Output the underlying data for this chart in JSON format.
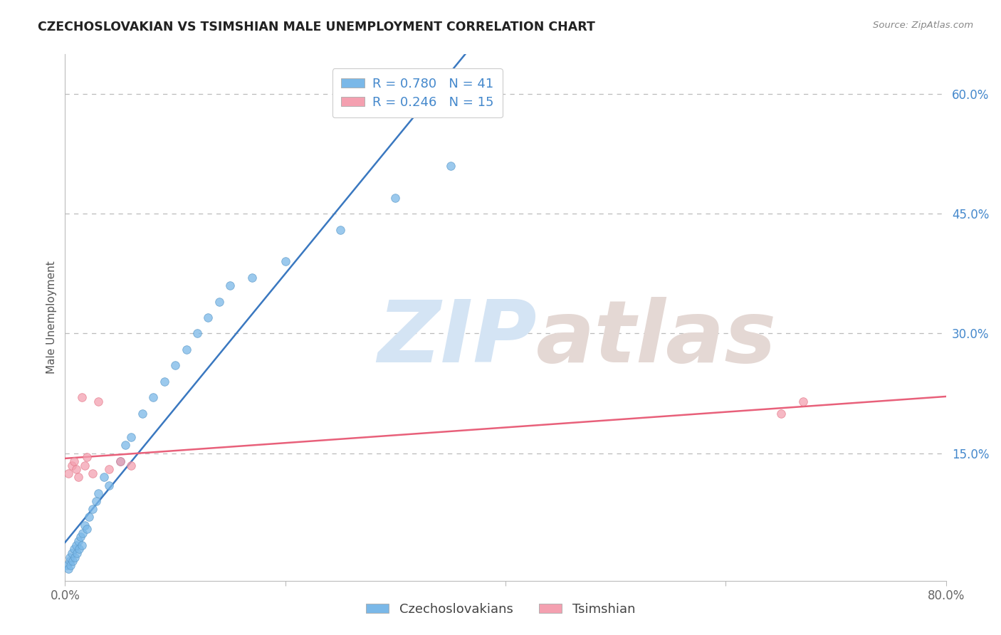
{
  "title": "CZECHOSLOVAKIAN VS TSIMSHIAN MALE UNEMPLOYMENT CORRELATION CHART",
  "source": "Source: ZipAtlas.com",
  "ylabel_label": "Male Unemployment",
  "right_ytick_values": [
    15.0,
    30.0,
    45.0,
    60.0
  ],
  "xlim": [
    0.0,
    80.0
  ],
  "ylim": [
    -1.0,
    65.0
  ],
  "blue_scatter_color": "#7ab8e8",
  "blue_scatter_edge": "#5a98c8",
  "pink_scatter_color": "#f4a0b0",
  "pink_scatter_edge": "#e47888",
  "blue_line_color": "#3a78c0",
  "pink_line_color": "#e8607a",
  "background_color": "#ffffff",
  "grid_color": "#bbbbbb",
  "title_color": "#222222",
  "source_color": "#888888",
  "axis_label_color": "#555555",
  "right_tick_color": "#4488cc",
  "bottom_tick_color": "#666666",
  "watermark_zip_color": "#d4e4f4",
  "watermark_atlas_color": "#e4d8d4",
  "czecho_x": [
    0.2,
    0.3,
    0.4,
    0.4,
    0.5,
    0.6,
    0.7,
    0.8,
    0.9,
    1.0,
    1.1,
    1.2,
    1.3,
    1.4,
    1.5,
    1.6,
    1.8,
    2.0,
    2.2,
    2.5,
    2.8,
    3.0,
    3.5,
    4.0,
    5.0,
    5.5,
    6.0,
    7.0,
    8.0,
    9.0,
    10.0,
    11.0,
    12.0,
    13.0,
    14.0,
    15.0,
    17.0,
    20.0,
    25.0,
    30.0,
    35.0
  ],
  "czecho_y": [
    1.0,
    0.5,
    1.5,
    2.0,
    1.0,
    2.5,
    1.5,
    3.0,
    2.0,
    3.5,
    2.5,
    4.0,
    3.0,
    4.5,
    3.5,
    5.0,
    6.0,
    5.5,
    7.0,
    8.0,
    9.0,
    10.0,
    12.0,
    11.0,
    14.0,
    16.0,
    17.0,
    20.0,
    22.0,
    24.0,
    26.0,
    28.0,
    30.0,
    32.0,
    34.0,
    36.0,
    37.0,
    39.0,
    43.0,
    47.0,
    51.0
  ],
  "tsimshian_x": [
    0.3,
    0.6,
    0.8,
    1.0,
    1.2,
    1.5,
    1.8,
    2.0,
    2.5,
    3.0,
    4.0,
    5.0,
    6.0,
    65.0,
    67.0
  ],
  "tsimshian_y": [
    12.5,
    13.5,
    14.0,
    13.0,
    12.0,
    22.0,
    13.5,
    14.5,
    12.5,
    21.5,
    13.0,
    14.0,
    13.5,
    20.0,
    21.5
  ],
  "legend_items": [
    {
      "label": "R = 0.780   N = 41",
      "color": "#7ab8e8"
    },
    {
      "label": "R = 0.246   N = 15",
      "color": "#f4a0b0"
    }
  ],
  "bottom_legend": [
    "Czechoslovakians",
    "Tsimshian"
  ]
}
